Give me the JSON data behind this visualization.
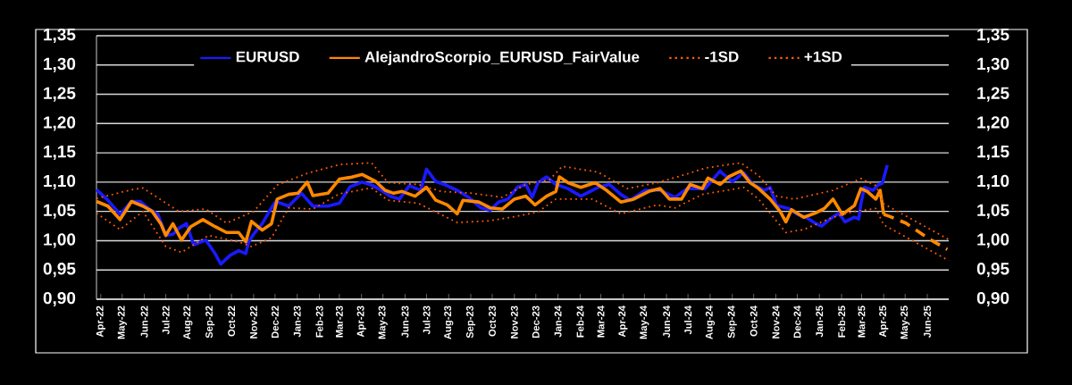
{
  "chart_data": {
    "type": "line",
    "xlim": [
      "2022-03-26",
      "2025-07-01"
    ],
    "xticks": [
      {
        "value": "2022-04-01",
        "label": "Apr-22"
      },
      {
        "value": "2022-05-01",
        "label": "May-22"
      },
      {
        "value": "2022-06-01",
        "label": "Jun-22"
      },
      {
        "value": "2022-07-01",
        "label": "Jul-22"
      },
      {
        "value": "2022-08-01",
        "label": "Aug-22"
      },
      {
        "value": "2022-09-01",
        "label": "Sep-22"
      },
      {
        "value": "2022-10-01",
        "label": "Oct-22"
      },
      {
        "value": "2022-11-01",
        "label": "Nov-22"
      },
      {
        "value": "2022-12-01",
        "label": "Dec-22"
      },
      {
        "value": "2023-01-01",
        "label": "Jan-23"
      },
      {
        "value": "2023-02-01",
        "label": "Feb-23"
      },
      {
        "value": "2023-03-01",
        "label": "Mar-23"
      },
      {
        "value": "2023-04-01",
        "label": "Apr-23"
      },
      {
        "value": "2023-05-01",
        "label": "May-23"
      },
      {
        "value": "2023-06-01",
        "label": "Jun-23"
      },
      {
        "value": "2023-07-01",
        "label": "Jul-23"
      },
      {
        "value": "2023-08-01",
        "label": "Aug-23"
      },
      {
        "value": "2023-09-01",
        "label": "Sep-23"
      },
      {
        "value": "2023-10-01",
        "label": "Oct-23"
      },
      {
        "value": "2023-11-01",
        "label": "Nov-23"
      },
      {
        "value": "2023-12-01",
        "label": "Dec-23"
      },
      {
        "value": "2024-01-01",
        "label": "Jan-24"
      },
      {
        "value": "2024-02-01",
        "label": "Feb-24"
      },
      {
        "value": "2024-03-01",
        "label": "Mar-24"
      },
      {
        "value": "2024-04-01",
        "label": "Apr-24"
      },
      {
        "value": "2024-05-01",
        "label": "May-24"
      },
      {
        "value": "2024-06-01",
        "label": "Jun-24"
      },
      {
        "value": "2024-07-01",
        "label": "Jul-24"
      },
      {
        "value": "2024-08-01",
        "label": "Aug-24"
      },
      {
        "value": "2024-09-01",
        "label": "Sep-24"
      },
      {
        "value": "2024-10-01",
        "label": "Oct-24"
      },
      {
        "value": "2024-11-01",
        "label": "Nov-24"
      },
      {
        "value": "2024-12-01",
        "label": "Dec-24"
      },
      {
        "value": "2025-01-01",
        "label": "Jan-25"
      },
      {
        "value": "2025-02-01",
        "label": "Feb-25"
      },
      {
        "value": "2025-03-01",
        "label": "Mar-25"
      },
      {
        "value": "2025-04-01",
        "label": "Apr-25"
      },
      {
        "value": "2025-05-01",
        "label": "May-25"
      },
      {
        "value": "2025-06-01",
        "label": "Jun-25"
      }
    ],
    "ylim": [
      0.9,
      1.35
    ],
    "yticks": [
      {
        "value": 0.9,
        "label": "0,90"
      },
      {
        "value": 0.95,
        "label": "0,95"
      },
      {
        "value": 1.0,
        "label": "1,00"
      },
      {
        "value": 1.05,
        "label": "1,05"
      },
      {
        "value": 1.1,
        "label": "1,10"
      },
      {
        "value": 1.15,
        "label": "1,15"
      },
      {
        "value": 1.2,
        "label": "1,20"
      },
      {
        "value": 1.25,
        "label": "1,25"
      },
      {
        "value": 1.3,
        "label": "1,30"
      },
      {
        "value": 1.35,
        "label": "1,35"
      }
    ],
    "y2lim": [
      0.9,
      1.35
    ],
    "y2ticks": [
      {
        "value": 0.9,
        "label": "0,90"
      },
      {
        "value": 0.95,
        "label": "0,95"
      },
      {
        "value": 1.0,
        "label": "1,00"
      },
      {
        "value": 1.05,
        "label": "1,05"
      },
      {
        "value": 1.1,
        "label": "1,10"
      },
      {
        "value": 1.15,
        "label": "1,15"
      },
      {
        "value": 1.2,
        "label": "1,20"
      },
      {
        "value": 1.25,
        "label": "1,25"
      },
      {
        "value": 1.3,
        "label": "1,30"
      },
      {
        "value": 1.35,
        "label": "1,35"
      }
    ],
    "grid": "y",
    "legend": "top",
    "series": [
      {
        "name": "EURUSD",
        "color": "#1a1aff",
        "line_style": "solid",
        "x": [
          "2022-03-26",
          "2022-04-11",
          "2022-04-28",
          "2022-05-14",
          "2022-05-26",
          "2022-06-08",
          "2022-06-20",
          "2022-07-01",
          "2022-07-11",
          "2022-07-19",
          "2022-07-30",
          "2022-08-09",
          "2022-08-26",
          "2022-09-08",
          "2022-09-16",
          "2022-09-29",
          "2022-10-11",
          "2022-10-21",
          "2022-10-25",
          "2022-11-01",
          "2022-11-13",
          "2022-11-24",
          "2022-12-02",
          "2022-12-20",
          "2023-01-07",
          "2023-01-23",
          "2023-02-13",
          "2023-03-01",
          "2023-03-16",
          "2023-04-02",
          "2023-04-17",
          "2023-04-29",
          "2023-05-11",
          "2023-05-24",
          "2023-06-07",
          "2023-06-23",
          "2023-07-01",
          "2023-07-14",
          "2023-07-26",
          "2023-08-13",
          "2023-08-29",
          "2023-09-15",
          "2023-09-28",
          "2023-10-10",
          "2023-10-23",
          "2023-11-05",
          "2023-11-17",
          "2023-11-26",
          "2023-12-04",
          "2023-12-16",
          "2023-12-29",
          "2024-01-15",
          "2024-02-02",
          "2024-02-26",
          "2024-03-13",
          "2024-03-29",
          "2024-04-11",
          "2024-05-02",
          "2024-05-23",
          "2024-06-13",
          "2024-06-30",
          "2024-07-25",
          "2024-08-15",
          "2024-08-17",
          "2024-09-01",
          "2024-09-17",
          "2024-09-30",
          "2024-10-16",
          "2024-10-24",
          "2024-11-02",
          "2024-11-19",
          "2024-12-01",
          "2024-12-13",
          "2024-12-26",
          "2025-01-04",
          "2025-01-16",
          "2025-01-28",
          "2025-02-06",
          "2025-02-19",
          "2025-02-25",
          "2025-02-28",
          "2025-03-05",
          "2025-03-17",
          "2025-03-25",
          "2025-03-30",
          "2025-04-06"
        ],
        "values": [
          1.087,
          1.069,
          1.045,
          1.067,
          1.067,
          1.054,
          1.045,
          1.009,
          1.011,
          1.021,
          1.029,
          0.993,
          1.001,
          0.978,
          0.96,
          0.975,
          0.983,
          0.978,
          0.998,
          1.011,
          1.029,
          1.052,
          1.067,
          1.059,
          1.081,
          1.059,
          1.059,
          1.064,
          1.092,
          1.1,
          1.094,
          1.086,
          1.076,
          1.071,
          1.094,
          1.086,
          1.122,
          1.101,
          1.096,
          1.086,
          1.074,
          1.056,
          1.052,
          1.066,
          1.071,
          1.091,
          1.096,
          1.074,
          1.099,
          1.109,
          1.096,
          1.089,
          1.076,
          1.091,
          1.096,
          1.079,
          1.069,
          1.086,
          1.086,
          1.074,
          1.089,
          1.089,
          1.119,
          1.116,
          1.101,
          1.116,
          1.096,
          1.086,
          1.091,
          1.06,
          1.055,
          1.045,
          1.04,
          1.03,
          1.025,
          1.037,
          1.047,
          1.032,
          1.04,
          1.037,
          1.063,
          1.091,
          1.086,
          1.096,
          1.098,
          1.129
        ]
      },
      {
        "name": "AlejandroScorpio_EURUSD_FairValue",
        "color": "#ff8800",
        "line_style": "solid",
        "x": [
          "2022-03-26",
          "2022-04-11",
          "2022-04-28",
          "2022-05-14",
          "2022-05-30",
          "2022-06-12",
          "2022-06-24",
          "2022-07-01",
          "2022-07-11",
          "2022-07-23",
          "2022-08-05",
          "2022-08-22",
          "2022-09-08",
          "2022-09-24",
          "2022-10-11",
          "2022-10-21",
          "2022-10-29",
          "2022-11-13",
          "2022-11-26",
          "2022-12-04",
          "2022-12-20",
          "2023-01-02",
          "2023-01-15",
          "2023-01-23",
          "2023-02-13",
          "2023-03-01",
          "2023-03-16",
          "2023-04-02",
          "2023-04-21",
          "2023-05-04",
          "2023-05-16",
          "2023-05-28",
          "2023-06-15",
          "2023-07-01",
          "2023-07-14",
          "2023-07-30",
          "2023-08-13",
          "2023-08-21",
          "2023-09-12",
          "2023-09-28",
          "2023-10-15",
          "2023-11-01",
          "2023-11-17",
          "2023-11-30",
          "2023-12-16",
          "2023-12-29",
          "2024-01-03",
          "2024-01-15",
          "2024-02-02",
          "2024-02-22",
          "2024-03-09",
          "2024-03-29",
          "2024-04-16",
          "2024-05-07",
          "2024-05-23",
          "2024-06-05",
          "2024-06-22",
          "2024-07-04",
          "2024-07-21",
          "2024-07-29",
          "2024-08-15",
          "2024-08-27",
          "2024-09-13",
          "2024-09-26",
          "2024-10-08",
          "2024-10-24",
          "2024-11-07",
          "2024-11-15",
          "2024-11-23",
          "2024-12-10",
          "2024-12-26",
          "2025-01-08",
          "2025-01-20",
          "2025-02-02",
          "2025-02-19",
          "2025-02-28",
          "2025-03-09",
          "2025-03-21",
          "2025-03-27",
          "2025-04-01"
        ],
        "values": [
          1.067,
          1.059,
          1.036,
          1.067,
          1.059,
          1.05,
          1.029,
          1.009,
          1.029,
          1.001,
          1.024,
          1.036,
          1.024,
          1.014,
          1.014,
          0.998,
          1.033,
          1.018,
          1.029,
          1.071,
          1.079,
          1.081,
          1.1,
          1.077,
          1.081,
          1.105,
          1.108,
          1.113,
          1.101,
          1.086,
          1.081,
          1.084,
          1.076,
          1.091,
          1.069,
          1.061,
          1.046,
          1.069,
          1.066,
          1.056,
          1.054,
          1.071,
          1.076,
          1.061,
          1.076,
          1.084,
          1.109,
          1.099,
          1.091,
          1.099,
          1.086,
          1.066,
          1.071,
          1.084,
          1.089,
          1.071,
          1.071,
          1.096,
          1.089,
          1.107,
          1.096,
          1.109,
          1.119,
          1.099,
          1.089,
          1.071,
          1.05,
          1.032,
          1.053,
          1.04,
          1.047,
          1.055,
          1.071,
          1.045,
          1.06,
          1.089,
          1.084,
          1.071,
          1.086,
          1.045
        ]
      },
      {
        "name": "-1SD",
        "color": "#ff5a00",
        "line_style": "dotted",
        "x": [
          "2022-03-26",
          "2022-04-28",
          "2022-05-30",
          "2022-07-01",
          "2022-07-23",
          "2022-08-30",
          "2022-10-11",
          "2022-10-29",
          "2022-11-26",
          "2022-12-20",
          "2023-01-23",
          "2023-03-01",
          "2023-04-15",
          "2023-05-08",
          "2023-06-19",
          "2023-08-13",
          "2023-09-28",
          "2023-11-01",
          "2023-12-04",
          "2023-12-29",
          "2024-02-18",
          "2024-03-29",
          "2024-05-19",
          "2024-06-13",
          "2024-07-21",
          "2024-09-17",
          "2024-10-08",
          "2024-11-15",
          "2024-12-10",
          "2025-01-20",
          "2025-02-19",
          "2025-03-21",
          "2025-04-01",
          "2025-07-01"
        ],
        "values": [
          1.047,
          1.019,
          1.05,
          0.99,
          0.98,
          1.009,
          0.998,
          0.99,
          1.005,
          1.056,
          1.054,
          1.08,
          1.09,
          1.069,
          1.064,
          1.031,
          1.034,
          1.041,
          1.049,
          1.071,
          1.071,
          1.046,
          1.061,
          1.056,
          1.079,
          1.091,
          1.071,
          1.014,
          1.019,
          1.04,
          1.05,
          1.055,
          1.027,
          0.966
        ]
      },
      {
        "name": "+1SD",
        "color": "#ff5a00",
        "line_style": "dotted",
        "x": [
          "2022-03-26",
          "2022-05-14",
          "2022-05-30",
          "2022-07-19",
          "2022-08-26",
          "2022-09-24",
          "2022-11-01",
          "2022-12-04",
          "2023-01-15",
          "2023-03-01",
          "2023-04-15",
          "2023-05-08",
          "2023-06-19",
          "2023-07-22",
          "2023-09-03",
          "2023-10-15",
          "2023-11-17",
          "2023-12-20",
          "2024-01-07",
          "2024-02-26",
          "2024-04-07",
          "2024-05-19",
          "2024-06-30",
          "2024-07-25",
          "2024-09-13",
          "2024-10-08",
          "2024-11-02",
          "2024-11-27",
          "2025-01-20",
          "2025-02-28",
          "2025-03-21",
          "2025-04-01",
          "2025-07-01"
        ],
        "values": [
          1.072,
          1.087,
          1.09,
          1.05,
          1.054,
          1.03,
          1.05,
          1.095,
          1.115,
          1.13,
          1.133,
          1.099,
          1.096,
          1.084,
          1.081,
          1.074,
          1.096,
          1.104,
          1.127,
          1.117,
          1.089,
          1.099,
          1.114,
          1.124,
          1.133,
          1.111,
          1.076,
          1.071,
          1.086,
          1.106,
          1.094,
          1.063,
          1.002
        ]
      },
      {
        "color": "#ff8800",
        "line_style": "dashed",
        "x": [
          "2025-04-01",
          "2025-04-08",
          "2025-05-02",
          "2025-06-05",
          "2025-06-29"
        ],
        "values": [
          1.045,
          1.042,
          1.03,
          1.002,
          0.985
        ]
      }
    ]
  }
}
